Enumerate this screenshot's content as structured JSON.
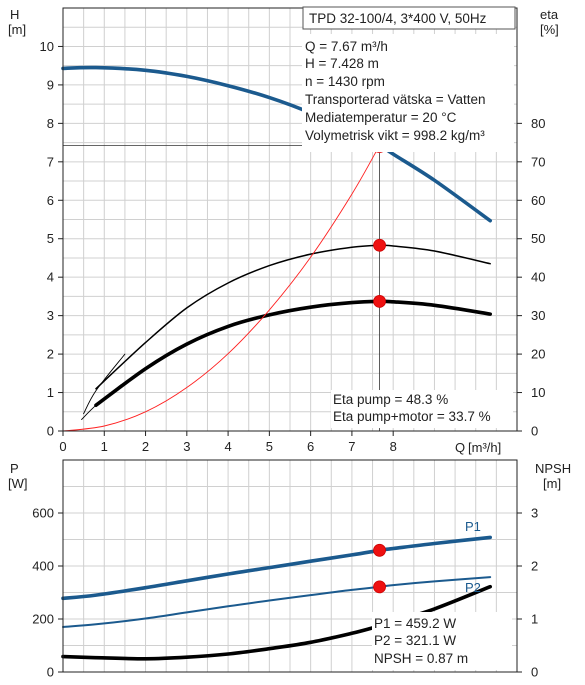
{
  "chart_data": [
    {
      "type": "line",
      "title": "TPD 32-100/4, 3*400 V, 50Hz",
      "xlabel": "Q [m³/h]",
      "x_title_prefix": "Q",
      "x_unit": "[m³/h]",
      "xlim": [
        0,
        11
      ],
      "x_tick_labels": [
        "0",
        "1",
        "2",
        "3",
        "4",
        "5",
        "6",
        "7",
        "8"
      ],
      "y_left": {
        "name": "H",
        "unit": "[m]",
        "lim": [
          0,
          11
        ],
        "tick_labels": [
          "0",
          "1",
          "2",
          "3",
          "4",
          "5",
          "6",
          "7",
          "8",
          "9",
          "10"
        ]
      },
      "y_right": {
        "name": "eta",
        "unit": "[%]",
        "lim": [
          0,
          110
        ],
        "tick_labels": [
          "0",
          "10",
          "20",
          "30",
          "40",
          "50",
          "60",
          "70",
          "80"
        ]
      },
      "grid": true,
      "series": [
        {
          "axis": "left",
          "color": "#1b5a8e",
          "style": "thick",
          "x": [
            0,
            0.8,
            2,
            3,
            4,
            5,
            6,
            7,
            7.67,
            8,
            9,
            10.35
          ],
          "y": [
            9.43,
            9.45,
            9.38,
            9.22,
            8.98,
            8.67,
            8.27,
            7.76,
            7.43,
            7.2,
            6.52,
            5.47
          ]
        },
        {
          "axis": "right",
          "color": "#000000",
          "style": "thin",
          "x": [
            0.8,
            2,
            3,
            4,
            5,
            6,
            7,
            7.67,
            8,
            9,
            10.35
          ],
          "y": [
            11,
            23,
            32,
            38.5,
            43,
            46,
            47.8,
            48.3,
            48.1,
            46.8,
            43.5
          ]
        },
        {
          "axis": "left",
          "color": "#000000",
          "style": "thick",
          "x": [
            0.8,
            2,
            3,
            4,
            5,
            6,
            7,
            7.67,
            8,
            9,
            10.35
          ],
          "y": [
            0.67,
            1.62,
            2.26,
            2.72,
            3.02,
            3.22,
            3.34,
            3.37,
            3.36,
            3.27,
            3.04
          ]
        },
        {
          "axis": "left",
          "color": "#ff2020",
          "style": "hairline",
          "x": [
            0,
            1,
            2,
            3,
            4,
            5,
            6,
            7,
            7.67
          ],
          "y": [
            0,
            0.13,
            0.5,
            1.13,
            2.01,
            3.15,
            4.52,
            6.16,
            7.43
          ]
        },
        {
          "axis": "left",
          "color": "#000000",
          "style": "hairline",
          "x": [
            0.5,
            0.8,
            1.5
          ],
          "y": [
            0.45,
            1.05,
            2.0
          ]
        },
        {
          "axis": "left",
          "color": "#000000",
          "style": "hairline",
          "x": [
            0.45,
            0.8,
            1.4
          ],
          "y": [
            0.3,
            0.67,
            1.2
          ]
        }
      ],
      "duty_points": [
        {
          "axis": "left",
          "x": 7.67,
          "y": 7.428,
          "kind": "duty"
        },
        {
          "axis": "right",
          "x": 7.67,
          "y": 48.3,
          "kind": "marker"
        },
        {
          "axis": "left",
          "x": 7.67,
          "y": 3.37,
          "kind": "marker"
        }
      ],
      "info_lines": [
        "Q = 7.67 m³/h",
        "H = 7.428 m",
        "n = 1430 rpm",
        "Transporterad vätska = Vatten",
        "Mediatemperatur = 20 °C",
        "Volymetrisk vikt = 998.2 kg/m³"
      ],
      "eff_lines": [
        "Eta pump = 48.3 %",
        "Eta pump+motor = 33.7 %"
      ]
    },
    {
      "type": "line",
      "xlim": [
        0,
        11
      ],
      "y_left": {
        "name": "P",
        "unit": "[W]",
        "lim": [
          0,
          800
        ],
        "tick_labels": [
          "0",
          "200",
          "400",
          "600"
        ]
      },
      "y_right": {
        "name": "NPSH",
        "unit": "[m]",
        "lim": [
          0,
          4
        ],
        "tick_labels": [
          "0",
          "1",
          "2",
          "3"
        ]
      },
      "grid": true,
      "series": [
        {
          "name": "P1",
          "axis": "left",
          "color": "#1b5a8e",
          "style": "thick",
          "x": [
            0,
            0.8,
            2,
            3,
            4,
            5,
            6,
            7,
            7.67,
            8,
            9,
            10.35
          ],
          "y": [
            278,
            290,
            318,
            344,
            370,
            394,
            418,
            442,
            459.2,
            466,
            485,
            508
          ]
        },
        {
          "name": "P2",
          "axis": "left",
          "color": "#1b5a8e",
          "style": "medium",
          "x": [
            0,
            0.8,
            2,
            3,
            4,
            5,
            6,
            7,
            7.67,
            8,
            9,
            10.35
          ],
          "y": [
            170,
            180,
            202,
            225,
            248,
            270,
            290,
            310,
            321.1,
            328,
            342,
            358
          ]
        },
        {
          "name": "",
          "axis": "right",
          "color": "#000000",
          "style": "thick",
          "x": [
            0,
            0.8,
            2,
            3,
            4,
            5,
            6,
            7,
            7.67,
            8,
            9,
            10.35
          ],
          "y": [
            0.29,
            0.27,
            0.25,
            0.28,
            0.34,
            0.44,
            0.56,
            0.73,
            0.87,
            0.95,
            1.19,
            1.61
          ]
        }
      ],
      "series_labels": [
        "P1",
        "P2"
      ],
      "duty_points": [
        {
          "axis": "left",
          "x": 7.67,
          "y": 459.2
        },
        {
          "axis": "left",
          "x": 7.67,
          "y": 321.1
        },
        {
          "axis": "right",
          "x": 7.67,
          "y": 0.87
        }
      ],
      "info_lines": [
        "P1 = 459.2 W",
        "P2 = 321.1 W",
        "NPSH = 0.87 m"
      ]
    }
  ]
}
